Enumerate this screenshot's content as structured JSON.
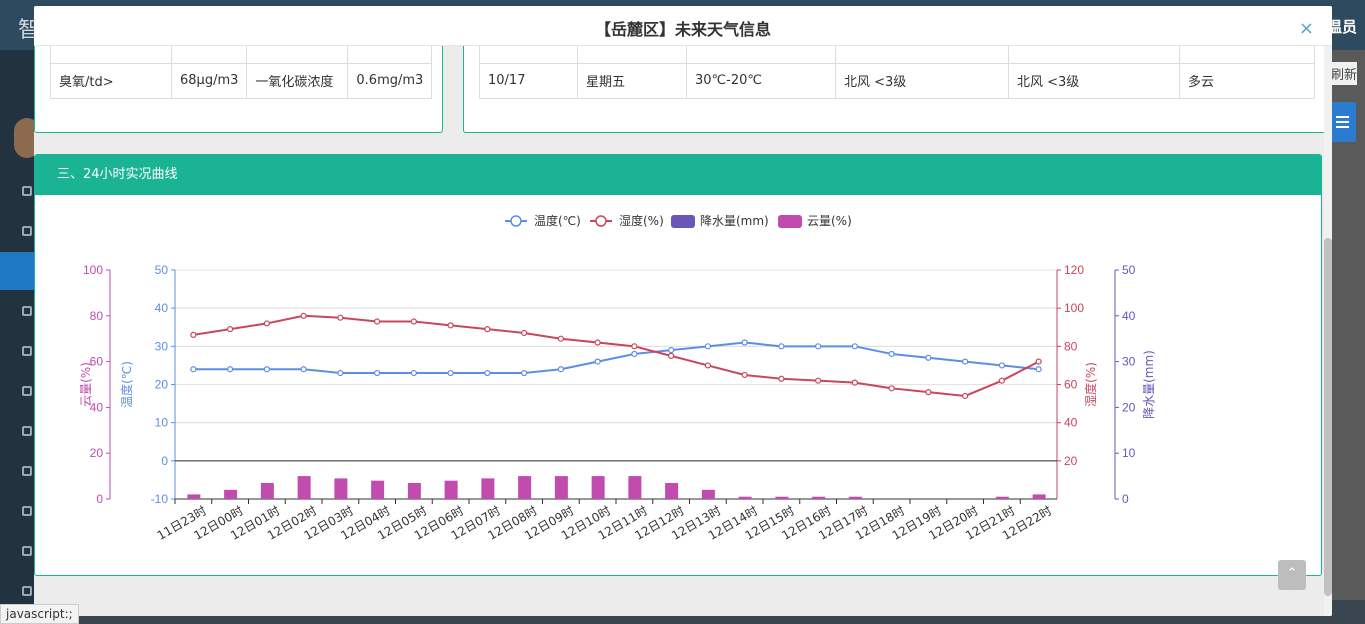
{
  "modal": {
    "title": "【岳麓区】未来天气信息",
    "close": "×"
  },
  "background": {
    "logo": "智",
    "right_text": "温员",
    "refresh": "刷新",
    "menu_button": "≡"
  },
  "air_table": {
    "rows": [
      [
        "臭氧/td>",
        "68μg/m3",
        "一氧化碳浓度",
        "0.6mg/m3"
      ]
    ]
  },
  "forecast_table": {
    "rows": [
      [
        "10/17",
        "星期五",
        "30℃-20℃",
        "北风 <3级",
        "北风 <3级",
        "多云"
      ]
    ]
  },
  "chart_panel": {
    "title": "三、24小时实况曲线"
  },
  "back_to_top": "⌃",
  "status_bar": "javascript:;",
  "chart_data": {
    "type": "line",
    "categories": [
      "11日23时",
      "12日00时",
      "12日01时",
      "12日02时",
      "12日03时",
      "12日04时",
      "12日05时",
      "12日06时",
      "12日07时",
      "12日08时",
      "12日09时",
      "12日10时",
      "12日11时",
      "12日12时",
      "12日13时",
      "12日14时",
      "12日15时",
      "12日16时",
      "12日17时",
      "12日18时",
      "12日19时",
      "12日20时",
      "12日21时",
      "12日22时"
    ],
    "legend": [
      "温度(℃)",
      "湿度(%)",
      "降水量(mm)",
      "云量(%)"
    ],
    "series": [
      {
        "name": "温度(℃)",
        "type": "line",
        "color": "#5b8ee6",
        "axis": "温度(℃)",
        "values": [
          24,
          24,
          24,
          24,
          23,
          23,
          23,
          23,
          23,
          23,
          24,
          26,
          28,
          29,
          30,
          31,
          30,
          30,
          30,
          28,
          27,
          26,
          25,
          24
        ]
      },
      {
        "name": "湿度(%)",
        "type": "line",
        "color": "#c9465c",
        "axis": "湿度(%)",
        "values": [
          86,
          89,
          92,
          96,
          95,
          93,
          93,
          91,
          89,
          87,
          84,
          82,
          80,
          75,
          70,
          65,
          63,
          62,
          61,
          58,
          56,
          54,
          62,
          72
        ]
      },
      {
        "name": "降水量(mm)",
        "type": "bar",
        "color": "#6a55b8",
        "axis": "降水量(mm)",
        "values": [
          0,
          0,
          0,
          0,
          0,
          0,
          0,
          0,
          0,
          0,
          0,
          0,
          0,
          0,
          0,
          0,
          0,
          0,
          0,
          0,
          0,
          0,
          0,
          0
        ]
      },
      {
        "name": "云量(%)",
        "type": "bar",
        "color": "#c24bb0",
        "axis": "云量(%)",
        "values": [
          2,
          4,
          7,
          10,
          9,
          8,
          7,
          8,
          9,
          10,
          10,
          10,
          10,
          7,
          4,
          1,
          1,
          1,
          1,
          0,
          0,
          0,
          1,
          2
        ]
      }
    ],
    "axes": {
      "cloud": {
        "label": "云量(%)",
        "ticks": [
          "100",
          "80",
          "60",
          "40",
          "20",
          "0"
        ],
        "range": [
          0,
          100
        ],
        "color": "#c24bb0"
      },
      "temp": {
        "label": "温度(℃)",
        "ticks": [
          "50",
          "40",
          "30",
          "20",
          "10",
          "0",
          "-10"
        ],
        "range": [
          -10,
          50
        ],
        "color": "#5b8ee6"
      },
      "humidity": {
        "label": "湿度(%)",
        "ticks": [
          "120",
          "100",
          "80",
          "60",
          "40",
          "20"
        ],
        "range": [
          0,
          120
        ],
        "color": "#c9465c"
      },
      "rain": {
        "label": "降水量(mm)",
        "ticks": [
          "50",
          "40",
          "30",
          "20",
          "10",
          "0"
        ],
        "range": [
          0,
          50
        ],
        "color": "#6a55b8"
      }
    },
    "grid": true,
    "legend_position": "top-center"
  }
}
